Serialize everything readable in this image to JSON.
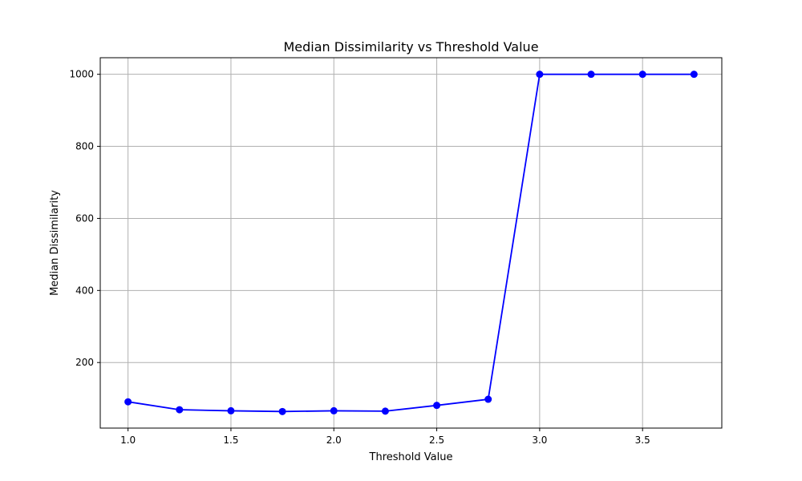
{
  "chart_data": {
    "type": "line",
    "title": "Median Dissimilarity vs Threshold Value",
    "xlabel": "Threshold Value",
    "ylabel": "Median Dissimilarity",
    "xlim": [
      0.865,
      3.885
    ],
    "ylim": [
      18,
      1046
    ],
    "xticks": [
      1.0,
      1.5,
      2.0,
      2.5,
      3.0,
      3.5
    ],
    "xtick_labels": [
      "1.0",
      "1.5",
      "2.0",
      "2.5",
      "3.0",
      "3.5"
    ],
    "yticks": [
      200,
      400,
      600,
      800,
      1000
    ],
    "ytick_labels": [
      "200",
      "400",
      "600",
      "800",
      "1000"
    ],
    "grid": true,
    "series": [
      {
        "color": "#0000ff",
        "marker": "circle",
        "x": [
          1.0,
          1.25,
          1.5,
          1.75,
          2.0,
          2.25,
          2.5,
          2.75,
          3.0,
          3.25,
          3.5,
          3.75
        ],
        "y": [
          91,
          69,
          66,
          64,
          66,
          65,
          81,
          98,
          1000,
          1000,
          1000,
          1000
        ]
      }
    ]
  }
}
